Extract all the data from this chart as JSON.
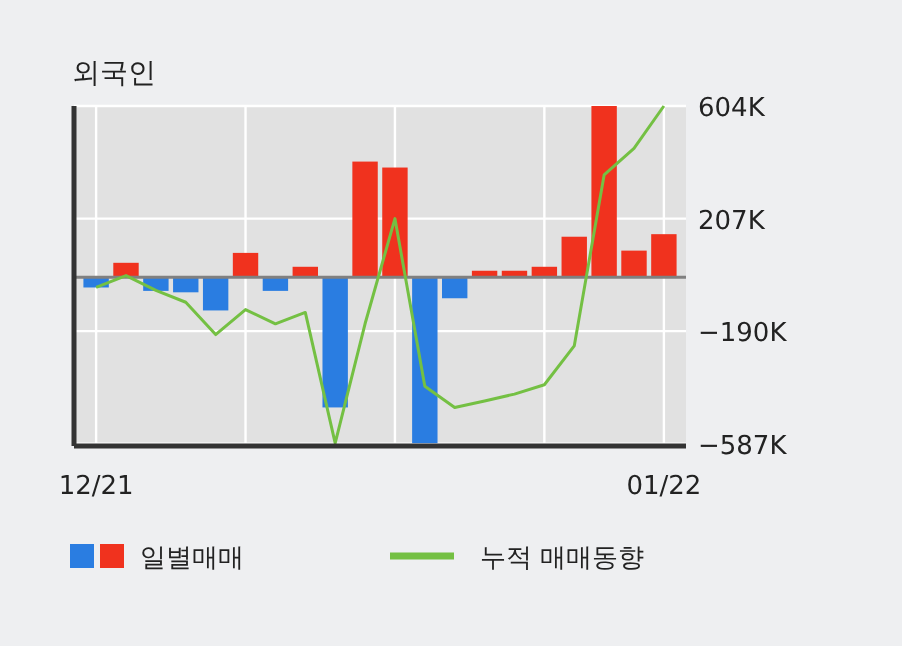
{
  "chart_data": {
    "type": "bar",
    "title": "외국인",
    "categories": [
      "12/21",
      null,
      null,
      null,
      null,
      null,
      null,
      null,
      null,
      null,
      null,
      null,
      null,
      null,
      null,
      null,
      null,
      null,
      null,
      "01/22"
    ],
    "ylim": [
      -595,
      604
    ],
    "yticks": [
      {
        "value": 604,
        "label": "604K"
      },
      {
        "value": 207,
        "label": "207K"
      },
      {
        "value": -190,
        "label": "−190K"
      },
      {
        "value": -587,
        "label": "−587K"
      }
    ],
    "grid": true,
    "legend": "bottom",
    "series": [
      {
        "name": "일별매매",
        "colors": [
          "#2a7de1",
          "#f0321e",
          "#2a7de1",
          "#2a7de1",
          "#2a7de1",
          "#f0321e",
          "#2a7de1",
          "#f0321e",
          "#2a7de1",
          "#f0321e",
          "#f0321e",
          "#2a7de1",
          "#2a7de1",
          "#f0321e",
          "#f0321e",
          "#f0321e",
          "#f0321e",
          "#f0321e",
          "#f0321e",
          "#f0321e"
        ],
        "values": [
          -36,
          51,
          -48,
          -53,
          -117,
          86,
          -48,
          37,
          -459,
          408,
          387,
          -585,
          -74,
          23,
          23,
          37,
          143,
          604,
          94,
          152
        ]
      },
      {
        "name": "누적 매매동향",
        "type": "line",
        "color": "#74c043",
        "values": [
          -36,
          6,
          -46,
          -88,
          -202,
          -114,
          -164,
          -124,
          -585,
          -164,
          207,
          -384,
          -459,
          -436,
          -412,
          -379,
          -242,
          361,
          455,
          604
        ]
      }
    ]
  }
}
